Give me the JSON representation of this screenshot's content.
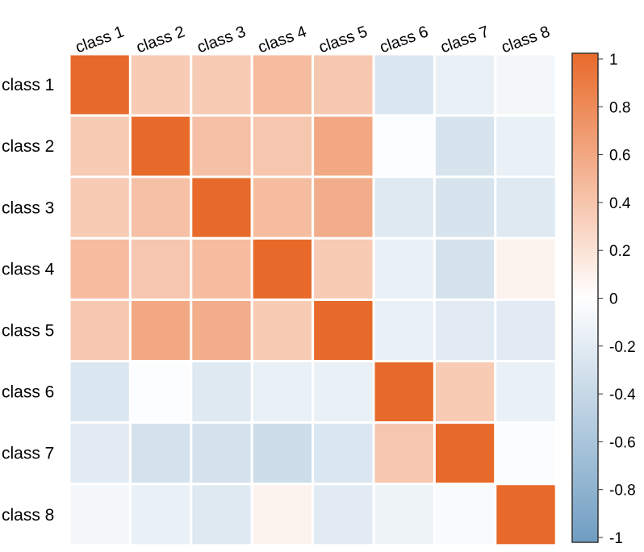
{
  "chart_data": {
    "type": "heatmap",
    "title": "",
    "xlabel": "",
    "ylabel": "",
    "categories": [
      "class 1",
      "class 2",
      "class 3",
      "class 4",
      "class 5",
      "class 6",
      "class 7",
      "class 8"
    ],
    "row_labels": [
      "class 1",
      "class 2",
      "class 3",
      "class 4",
      "class 5",
      "class 6",
      "class 7",
      "class 8"
    ],
    "matrix": [
      [
        1.0,
        0.35,
        0.35,
        0.45,
        0.37,
        -0.25,
        -0.15,
        -0.08
      ],
      [
        0.35,
        1.0,
        0.42,
        0.38,
        0.58,
        -0.02,
        -0.28,
        -0.15
      ],
      [
        0.35,
        0.42,
        1.0,
        0.45,
        0.55,
        -0.22,
        -0.28,
        -0.22
      ],
      [
        0.45,
        0.38,
        0.45,
        1.0,
        0.35,
        -0.15,
        -0.3,
        0.08
      ],
      [
        0.37,
        0.58,
        0.55,
        0.35,
        1.0,
        -0.15,
        -0.2,
        -0.2
      ],
      [
        -0.25,
        -0.02,
        -0.22,
        -0.15,
        -0.15,
        1.0,
        0.35,
        -0.15
      ],
      [
        -0.2,
        -0.3,
        -0.3,
        -0.35,
        -0.25,
        0.38,
        1.0,
        -0.03
      ],
      [
        -0.08,
        -0.15,
        -0.22,
        0.08,
        -0.2,
        -0.12,
        -0.05,
        1.0
      ]
    ],
    "color_range": [
      -1,
      1
    ],
    "colorbar_ticks": [
      "1",
      "0.8",
      "0.6",
      "0.4",
      "0.2",
      "0",
      "-0.2",
      "-0.4",
      "-0.6",
      "-0.8",
      "-1"
    ],
    "colors": {
      "positive": "#E86A2A",
      "neutral": "#FFFFFF",
      "negative": "#6F9DC2",
      "cell_border": "#FFFFFF"
    },
    "legend_position": "right"
  }
}
